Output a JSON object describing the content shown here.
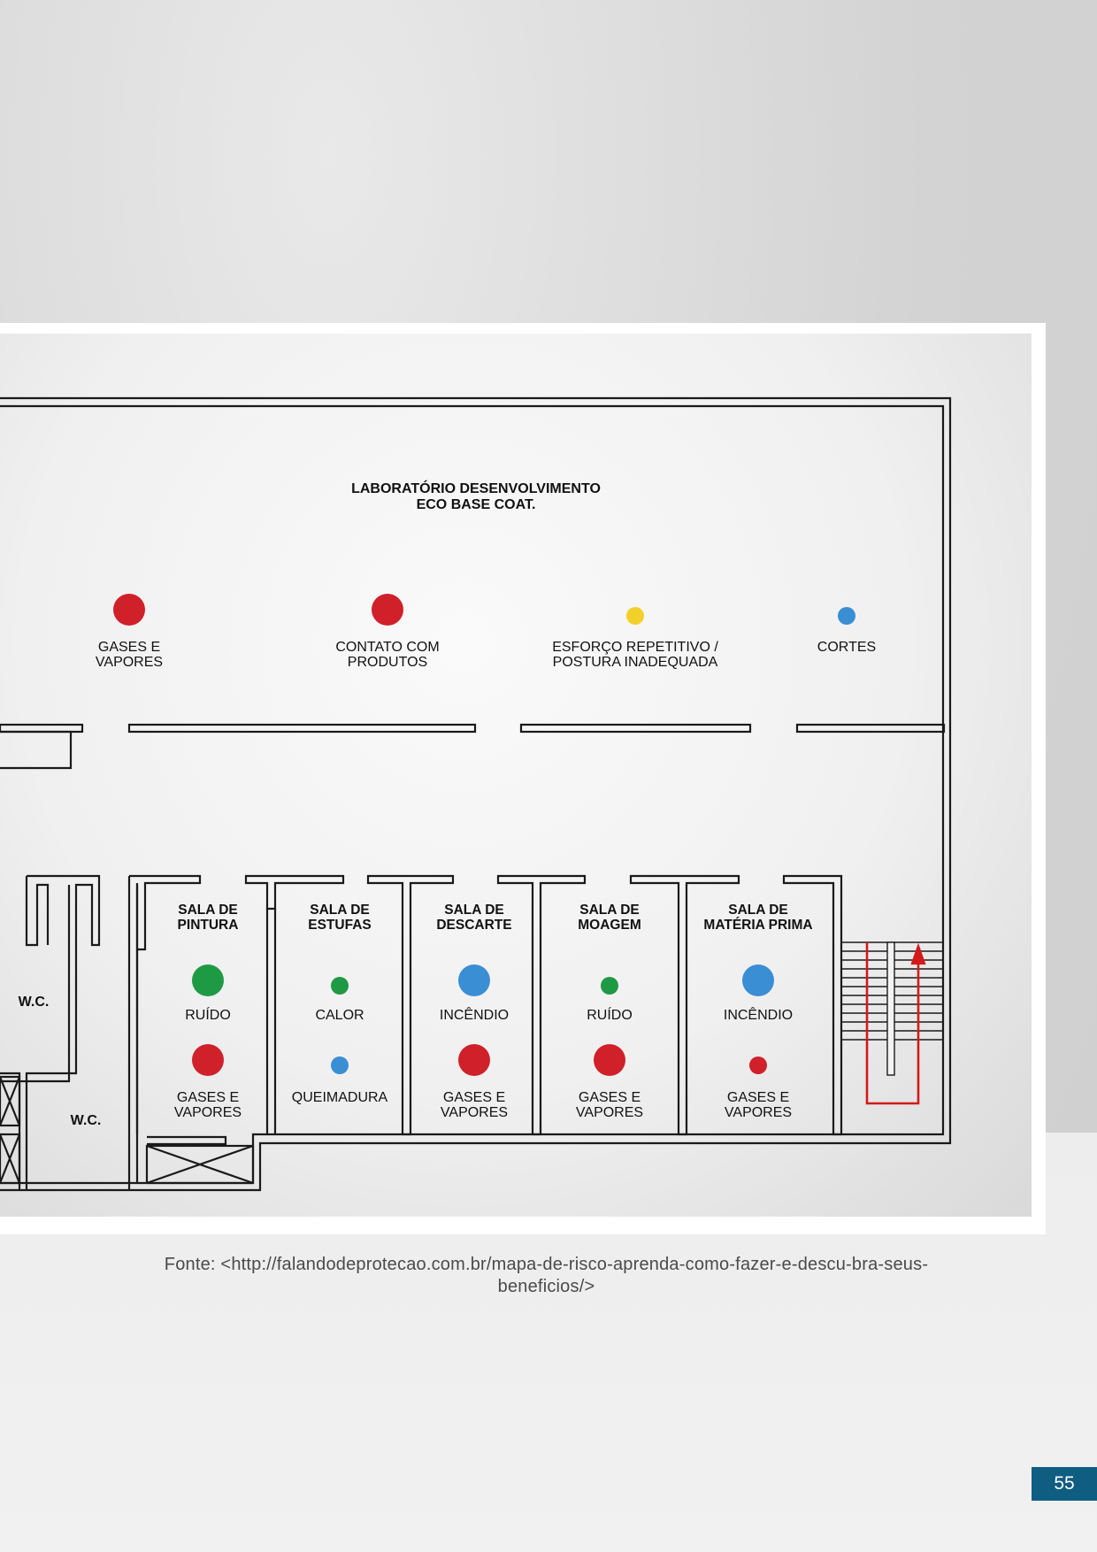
{
  "plan": {
    "title_line1": "LABORATÓRIO DESENVOLVIMENTO",
    "title_line2": "ECO BASE COAT.",
    "corridor_risks": [
      {
        "line1": "GASES E",
        "line2": "VAPORES",
        "color": "#d0202a",
        "size": "large"
      },
      {
        "line1": "CONTATO COM",
        "line2": "PRODUTOS",
        "color": "#d0202a",
        "size": "large"
      },
      {
        "line1": "ESFORÇO REPETITIVO /",
        "line2": "POSTURA INADEQUADA",
        "color": "#f2d02a",
        "size": "small"
      },
      {
        "line1": "CORTES",
        "line2": "",
        "color": "#3a8ed4",
        "size": "small"
      }
    ],
    "rooms": [
      {
        "name1": "SALA DE",
        "name2": "PINTURA",
        "risk1": "RUÍDO",
        "risk1_color": "#1f9a44",
        "risk1_size": "large",
        "risk2a": "GASES E",
        "risk2b": "VAPORES",
        "risk2_color": "#d0202a",
        "risk2_size": "large"
      },
      {
        "name1": "SALA DE",
        "name2": "ESTUFAS",
        "risk1": "CALOR",
        "risk1_color": "#1f9a44",
        "risk1_size": "small",
        "risk2a": "QUEIMADURA",
        "risk2b": "",
        "risk2_color": "#3a8ed4",
        "risk2_size": "small"
      },
      {
        "name1": "SALA DE",
        "name2": "DESCARTE",
        "risk1": "INCÊNDIO",
        "risk1_color": "#3a8ed4",
        "risk1_size": "large",
        "risk2a": "GASES E",
        "risk2b": "VAPORES",
        "risk2_color": "#d0202a",
        "risk2_size": "large"
      },
      {
        "name1": "SALA DE",
        "name2": "MOAGEM",
        "risk1": "RUÍDO",
        "risk1_color": "#1f9a44",
        "risk1_size": "small",
        "risk2a": "GASES E",
        "risk2b": "VAPORES",
        "risk2_color": "#d0202a",
        "risk2_size": "large"
      },
      {
        "name1": "SALA DE",
        "name2": "MATÉRIA PRIMA",
        "risk1": "INCÊNDIO",
        "risk1_color": "#3a8ed4",
        "risk1_size": "large",
        "risk2a": "GASES E",
        "risk2b": "VAPORES",
        "risk2_color": "#d0202a",
        "risk2_size": "small"
      }
    ],
    "wc1": "W.C.",
    "wc2": "W.C."
  },
  "caption": "Fonte: <http://falandodeprotecao.com.br/mapa-de-risco-aprenda-como-fazer-e-descu-bra-seus-beneficios/>",
  "page_number": "55"
}
